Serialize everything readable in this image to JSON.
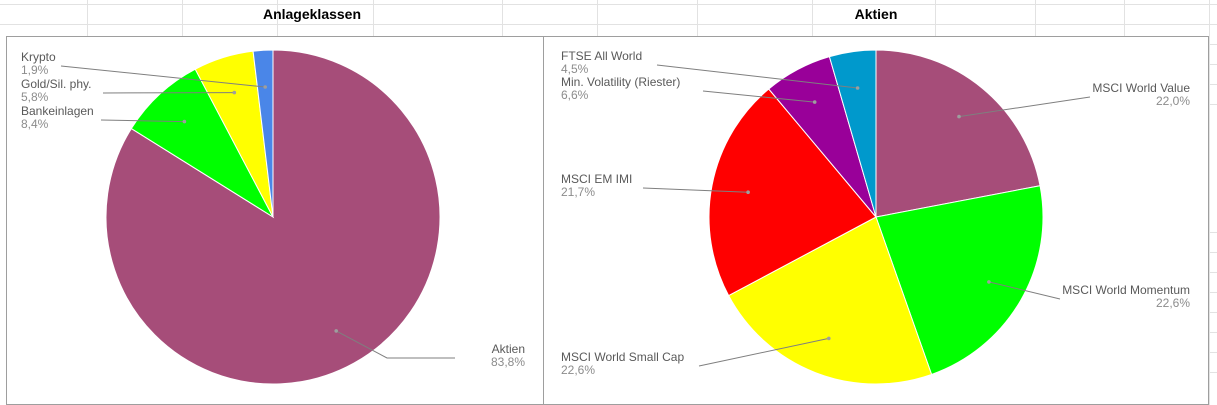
{
  "chart_data": [
    {
      "type": "pie",
      "title": "Anlageklassen",
      "slices": [
        {
          "label": "Aktien",
          "value_label": "83,8%",
          "value": 83.8,
          "color": "#a64d79"
        },
        {
          "label": "Bankeinlagen",
          "value_label": "8,4%",
          "value": 8.4,
          "color": "#00ff00"
        },
        {
          "label": "Gold/Sil. phy.",
          "value_label": "5,8%",
          "value": 5.8,
          "color": "#ffff00"
        },
        {
          "label": "Krypto",
          "value_label": "1,9%",
          "value": 1.9,
          "color": "#4a86e8"
        }
      ]
    },
    {
      "type": "pie",
      "title": "Aktien",
      "slices": [
        {
          "label": "MSCI World Value",
          "value_label": "22,0%",
          "value": 22.0,
          "color": "#a64d79"
        },
        {
          "label": "MSCI World Momentum",
          "value_label": "22,6%",
          "value": 22.6,
          "color": "#00ff00"
        },
        {
          "label": "MSCI World Small Cap",
          "value_label": "22,6%",
          "value": 22.6,
          "color": "#ffff00"
        },
        {
          "label": "MSCI EM IMI",
          "value_label": "21,7%",
          "value": 21.7,
          "color": "#ff0000"
        },
        {
          "label": "Min. Volatility (Riester)",
          "value_label": "6,6%",
          "value": 6.6,
          "color": "#990099"
        },
        {
          "label": "FTSE All World",
          "value_label": "4,5%",
          "value": 4.5,
          "color": "#0099cc"
        }
      ]
    }
  ]
}
